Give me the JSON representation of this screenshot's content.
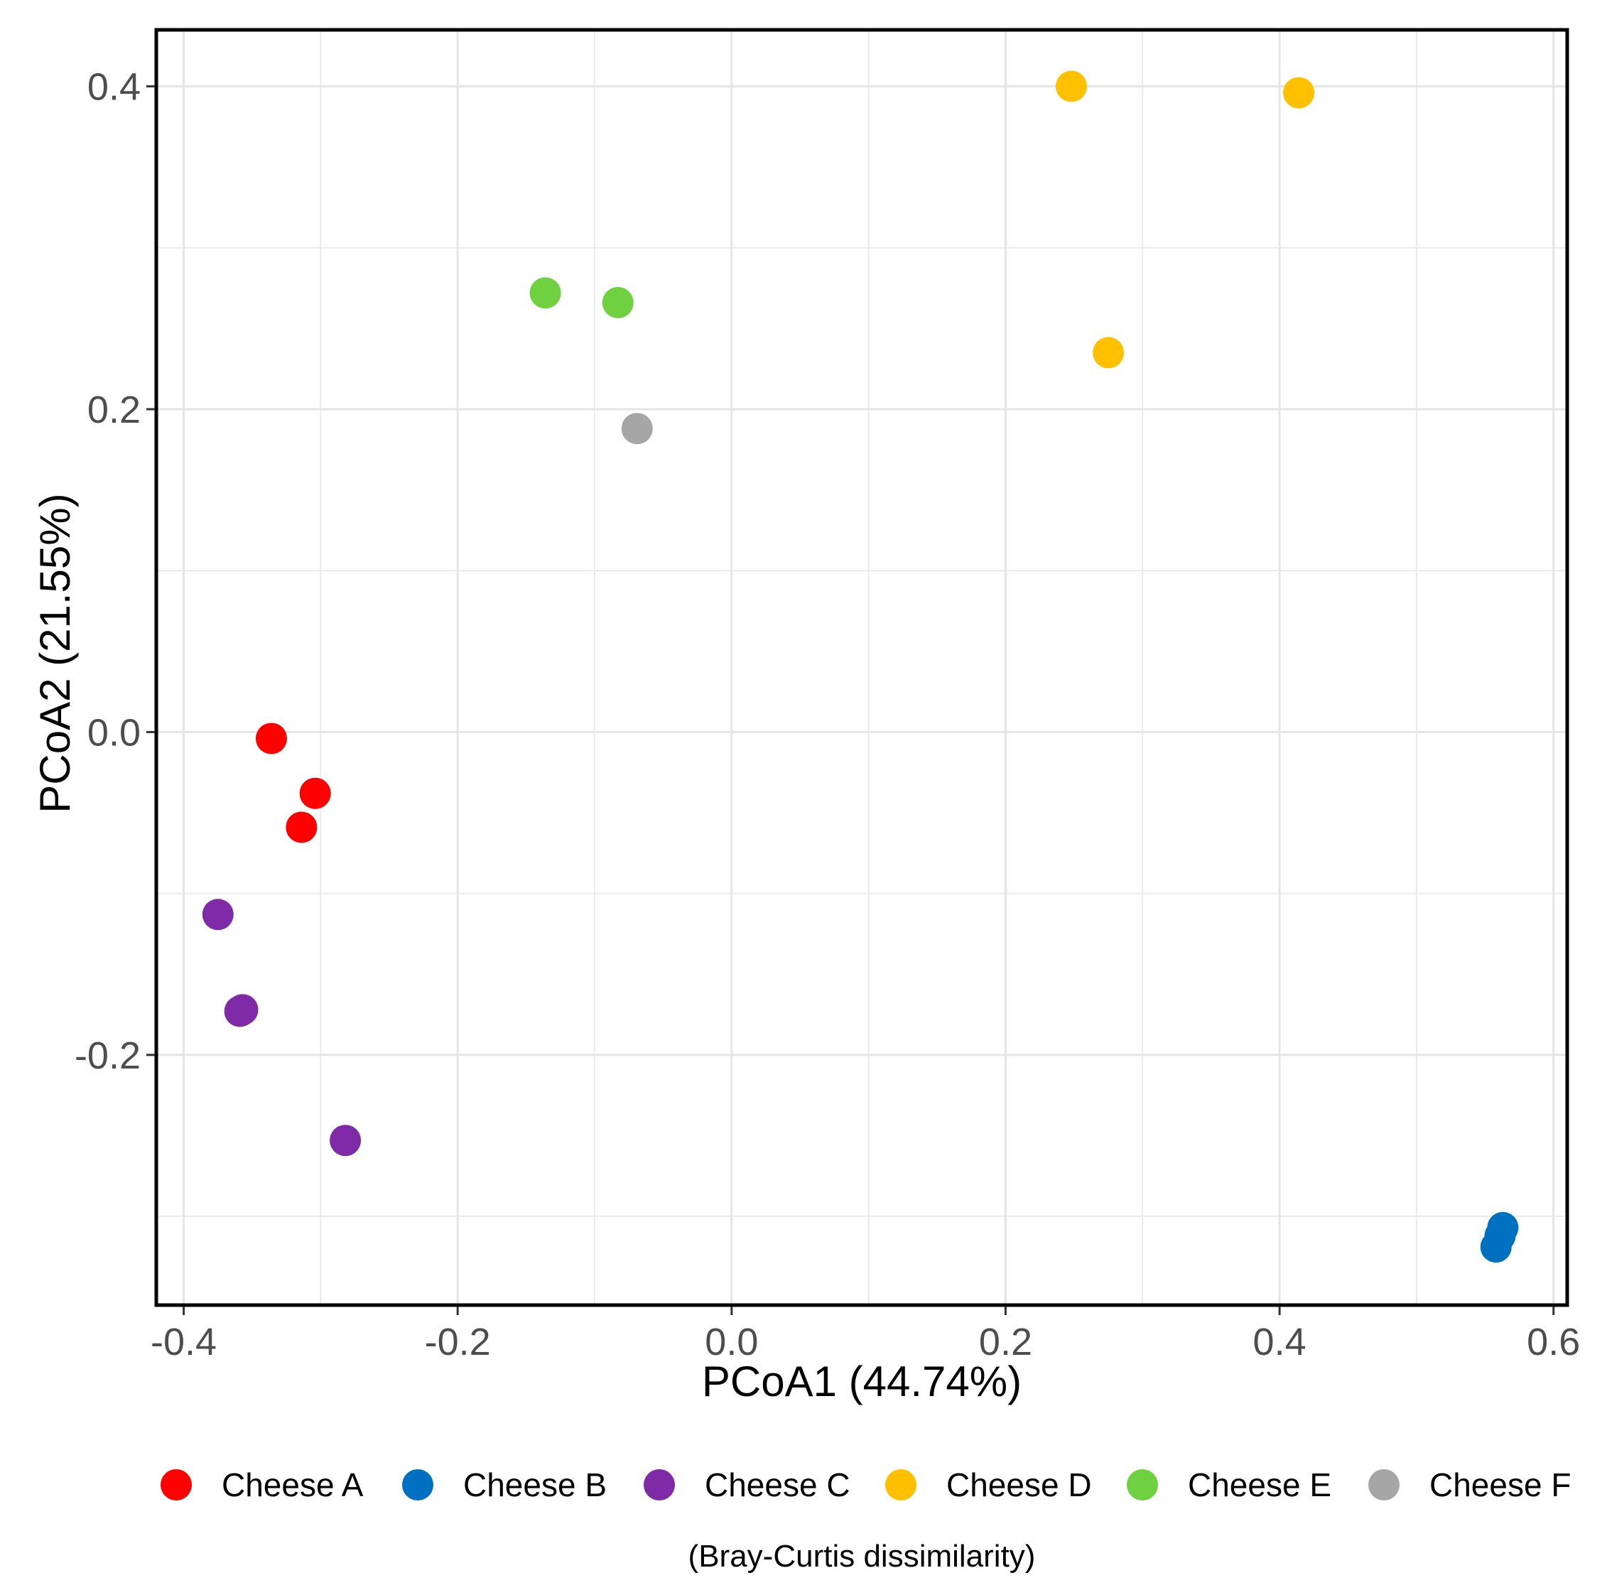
{
  "chart_data": {
    "type": "scatter",
    "xlabel": "PCoA1 (44.74%)",
    "ylabel": "PCoA2 (21.55%)",
    "caption": "(Bray-Curtis dissimilarity)",
    "xlim": [
      -0.42,
      0.61
    ],
    "ylim": [
      -0.355,
      0.435
    ],
    "x_ticks": [
      -0.4,
      -0.2,
      0.0,
      0.2,
      0.4,
      0.6
    ],
    "x_tick_labels": [
      "-0.4",
      "-0.2",
      "0.0",
      "0.2",
      "0.4",
      "0.6"
    ],
    "y_ticks": [
      -0.2,
      0.0,
      0.2,
      0.4
    ],
    "y_tick_labels": [
      "-0.2",
      "0.0",
      "0.2",
      "0.4"
    ],
    "grid": true,
    "legend_position": "bottom",
    "series": [
      {
        "name": "Cheese A",
        "color": "#ff0000",
        "points": [
          [
            -0.336,
            -0.004
          ],
          [
            -0.304,
            -0.038
          ],
          [
            -0.314,
            -0.059
          ]
        ]
      },
      {
        "name": "Cheese B",
        "color": "#0070c0",
        "points": [
          [
            0.563,
            -0.307
          ],
          [
            0.561,
            -0.312
          ],
          [
            0.558,
            -0.319
          ]
        ]
      },
      {
        "name": "Cheese C",
        "color": "#7f2aa6",
        "points": [
          [
            -0.375,
            -0.113
          ],
          [
            -0.359,
            -0.173
          ],
          [
            -0.357,
            -0.172
          ],
          [
            -0.282,
            -0.253
          ]
        ]
      },
      {
        "name": "Cheese D",
        "color": "#ffc000",
        "points": [
          [
            0.248,
            0.4
          ],
          [
            0.414,
            0.396
          ],
          [
            0.275,
            0.235
          ]
        ]
      },
      {
        "name": "Cheese E",
        "color": "#6fd13f",
        "points": [
          [
            -0.136,
            0.272
          ],
          [
            -0.083,
            0.266
          ]
        ]
      },
      {
        "name": "Cheese F",
        "color": "#a6a6a6",
        "points": [
          [
            -0.069,
            0.188
          ]
        ]
      }
    ]
  }
}
